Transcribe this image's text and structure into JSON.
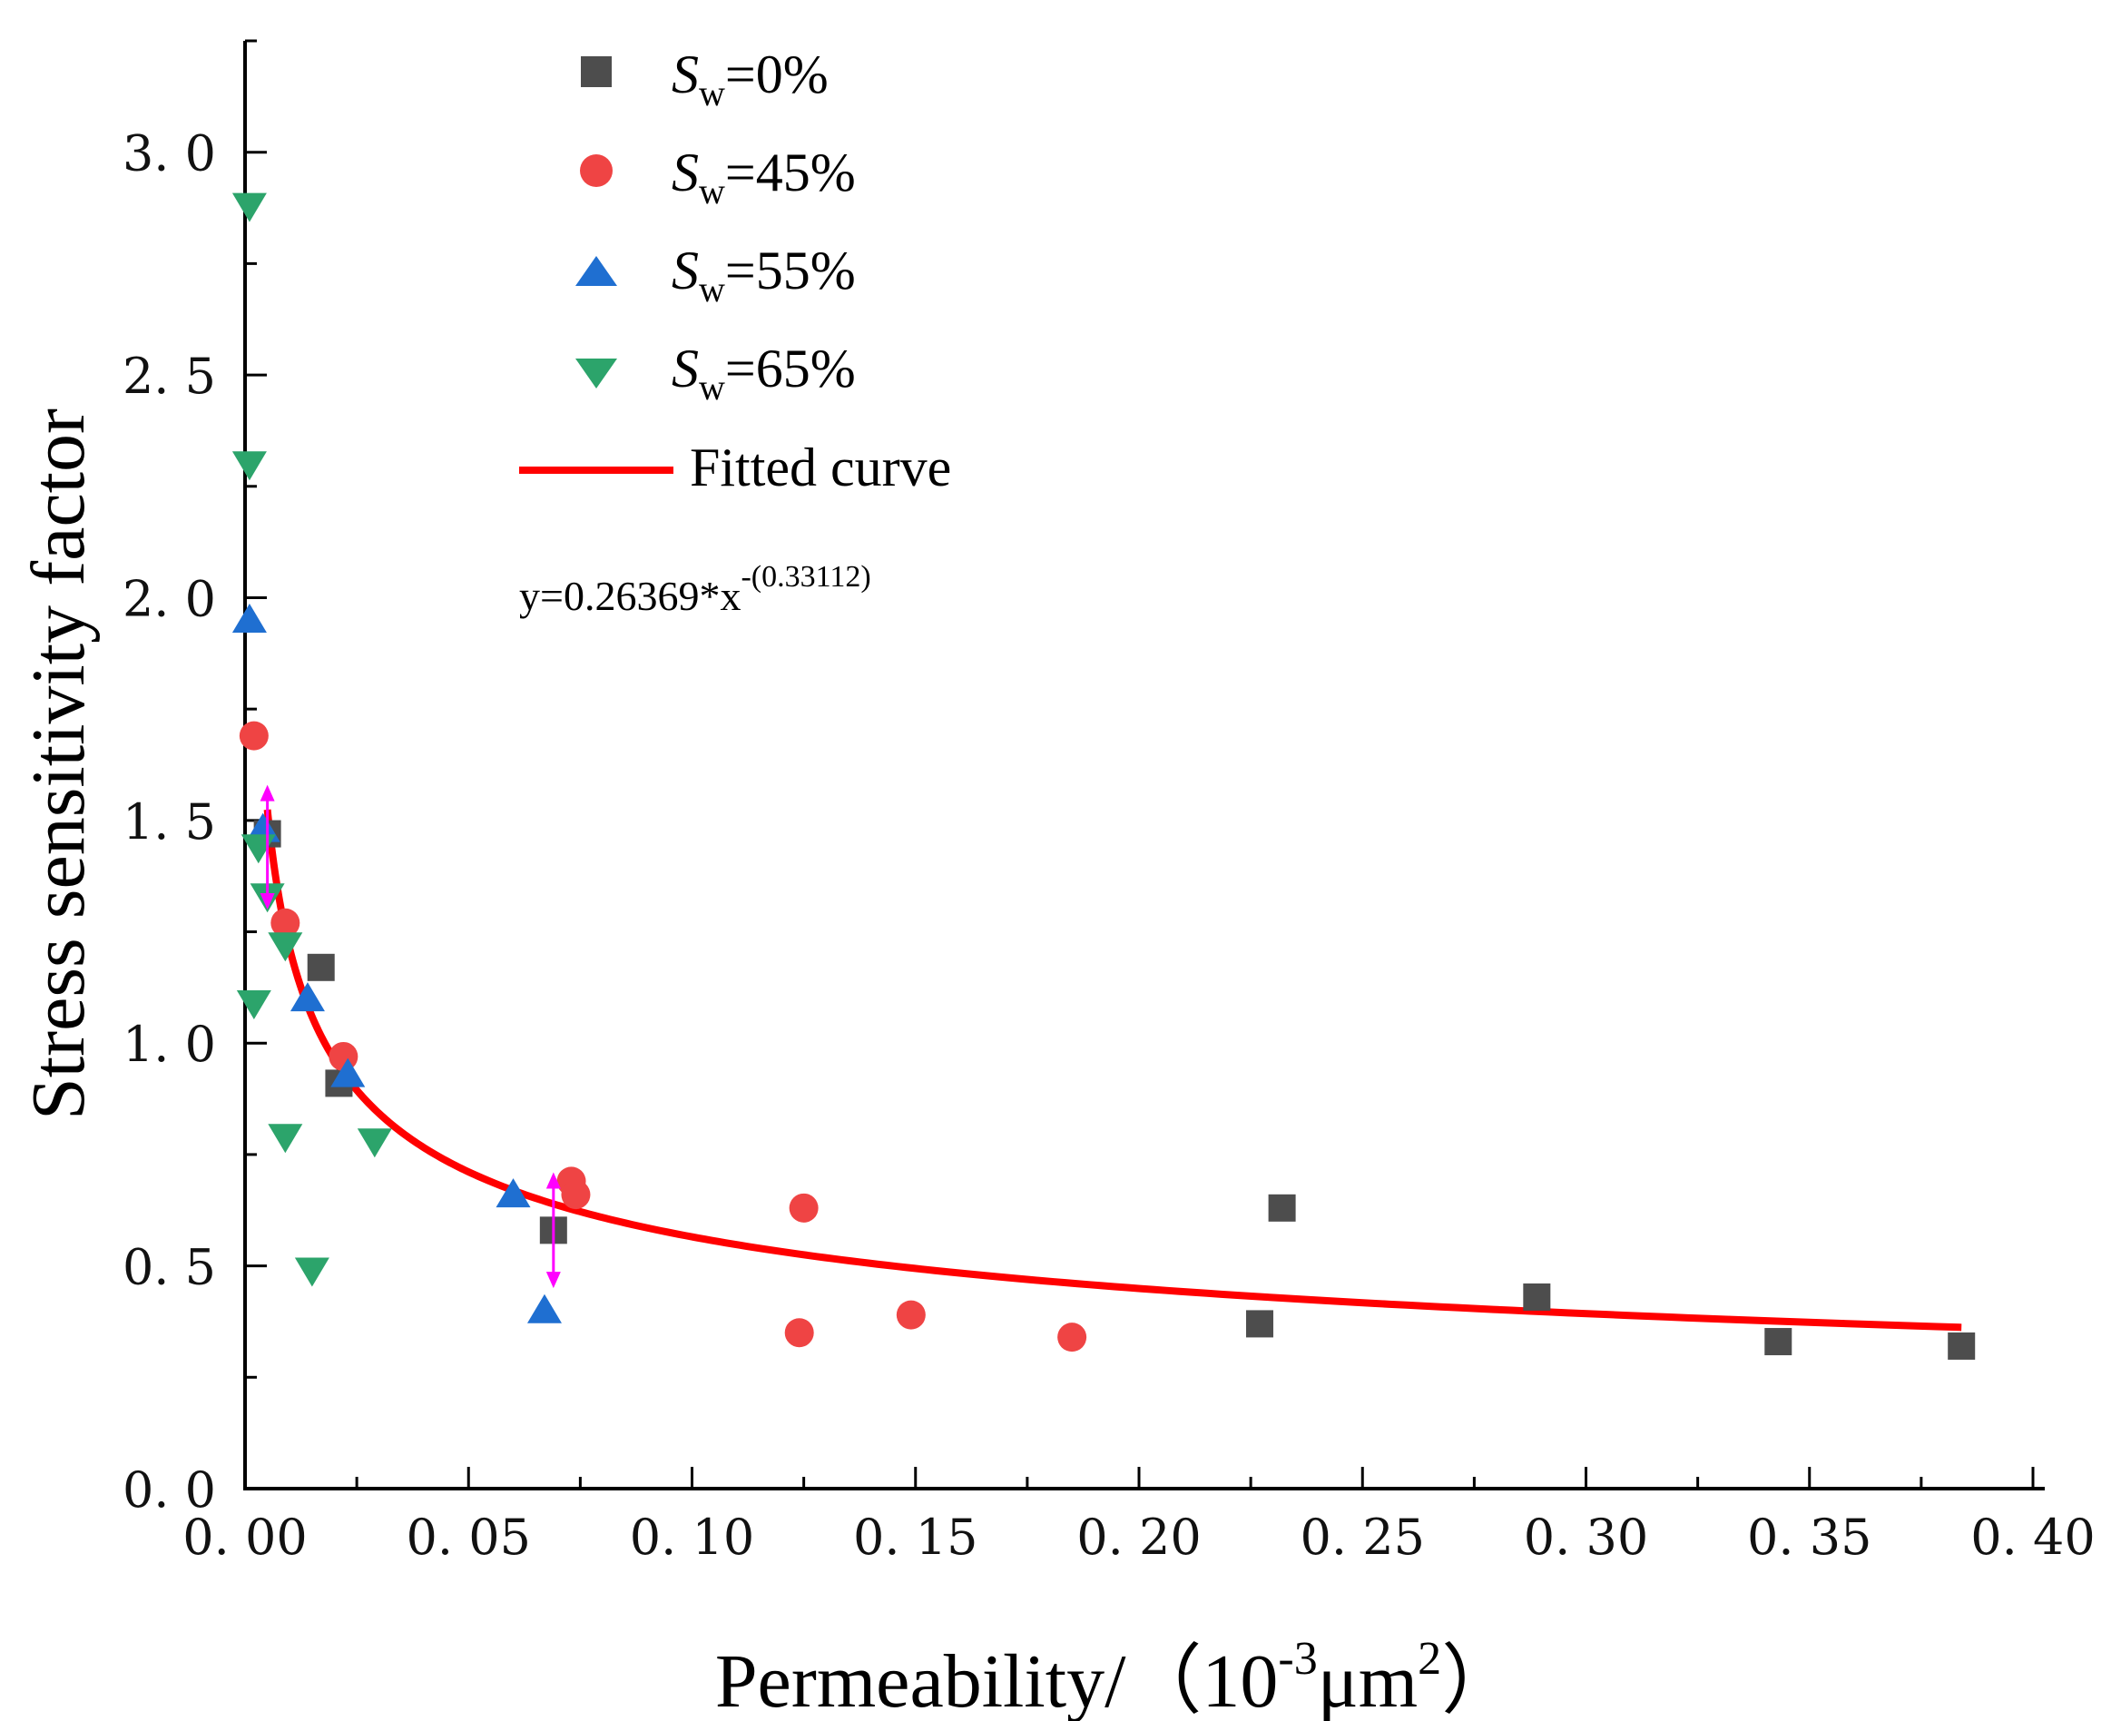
{
  "chart_data": {
    "type": "scatter",
    "title": "",
    "xlabel": {
      "main": "Permeability/（10",
      "exp1": "-3",
      "mid": "μm",
      "exp2": "2",
      "end": "）"
    },
    "ylabel": "Stress sensitivity factor",
    "xlim": [
      0,
      0.4
    ],
    "ylim": [
      0,
      3.25
    ],
    "xticks": [
      "0. 00",
      "0. 05",
      "0. 10",
      "0. 15",
      "0. 20",
      "0. 25",
      "0. 30",
      "0. 35",
      "0. 40"
    ],
    "xtick_values": [
      0,
      0.05,
      0.1,
      0.15,
      0.2,
      0.25,
      0.3,
      0.35,
      0.4
    ],
    "yticks": [
      "0. 0",
      "0. 5",
      "1. 0",
      "1. 5",
      "2. 0",
      "2. 5",
      "3. 0"
    ],
    "ytick_values": [
      0,
      0.5,
      1.0,
      1.5,
      2.0,
      2.5,
      3.0
    ],
    "grid": false,
    "legend_position": "top-center",
    "series": [
      {
        "name": "Sw=0%",
        "label_main": "S",
        "label_sub": "w",
        "label_rest": "=0%",
        "marker": "square",
        "color": "#4d4d4d",
        "points": [
          [
            0.005,
            1.47
          ],
          [
            0.017,
            1.17
          ],
          [
            0.021,
            0.91
          ],
          [
            0.069,
            0.58
          ],
          [
            0.227,
            0.37
          ],
          [
            0.232,
            0.63
          ],
          [
            0.289,
            0.43
          ],
          [
            0.343,
            0.33
          ],
          [
            0.384,
            0.32
          ]
        ]
      },
      {
        "name": "Sw=45%",
        "label_main": "S",
        "label_sub": "w",
        "label_rest": "=45%",
        "marker": "circle",
        "color": "#ef4444",
        "points": [
          [
            0.002,
            1.69
          ],
          [
            0.009,
            1.27
          ],
          [
            0.022,
            0.97
          ],
          [
            0.073,
            0.69
          ],
          [
            0.074,
            0.66
          ],
          [
            0.124,
            0.35
          ],
          [
            0.125,
            0.63
          ],
          [
            0.149,
            0.39
          ],
          [
            0.185,
            0.34
          ]
        ]
      },
      {
        "name": "Sw=55%",
        "label_main": "S",
        "label_sub": "w",
        "label_rest": "=55%",
        "marker": "triangle-up",
        "color": "#1f6fd1",
        "points": [
          [
            0.001,
            1.95
          ],
          [
            0.004,
            1.48
          ],
          [
            0.014,
            1.1
          ],
          [
            0.023,
            0.93
          ],
          [
            0.06,
            0.66
          ],
          [
            0.067,
            0.4
          ]
        ]
      },
      {
        "name": "Sw=65%",
        "label_main": "S",
        "label_sub": "w",
        "label_rest": "=65%",
        "marker": "triangle-down",
        "color": "#2ca46b",
        "points": [
          [
            0.001,
            2.88
          ],
          [
            0.001,
            2.3
          ],
          [
            0.003,
            1.44
          ],
          [
            0.005,
            1.33
          ],
          [
            0.009,
            1.22
          ],
          [
            0.002,
            1.09
          ],
          [
            0.009,
            0.79
          ],
          [
            0.015,
            0.49
          ],
          [
            0.029,
            0.78
          ]
        ]
      }
    ],
    "fit": {
      "label": "Fitted curve",
      "color": "#ff0000",
      "a": 0.26369,
      "b": 0.33112,
      "x_start": 0.005,
      "x_end": 0.384
    },
    "equation": {
      "base": "y=0.26369*x",
      "exponent": "-(0.33112)"
    },
    "annotations": [
      {
        "name": "arrow-left",
        "x": 0.005,
        "y_from": 1.58,
        "y_to": 1.3,
        "color": "#ff00ff"
      },
      {
        "name": "arrow-right",
        "x": 0.069,
        "y_from": 0.71,
        "y_to": 0.45,
        "color": "#ff00ff"
      }
    ]
  }
}
